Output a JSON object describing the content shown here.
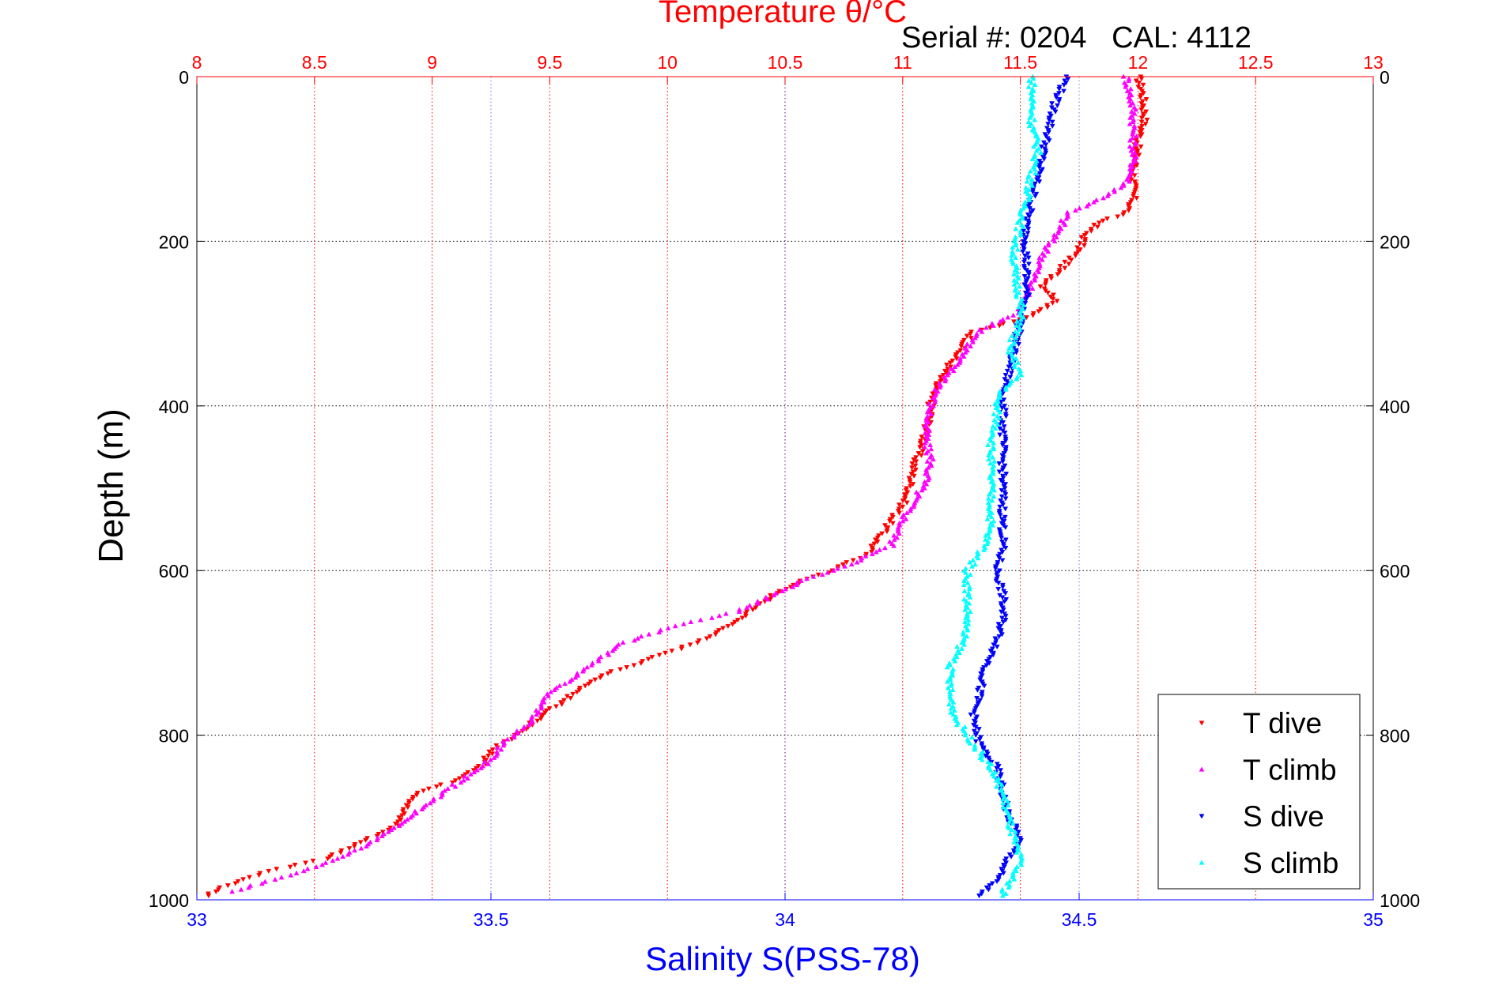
{
  "header": {
    "serial_text": "Serial #: 0204   CAL: 4112"
  },
  "colors": {
    "temperature_axis": "#ff0000",
    "salinity_axis": "#0000ff",
    "depth_axis": "#000000",
    "grid_depth": "#000000",
    "grid_temperature": "#ff0000",
    "grid_salinity": "#0000ff"
  },
  "chart_data": {
    "type": "scatter",
    "title": "Serial #: 0204   CAL: 4112",
    "ylabel": "Depth (m)",
    "ylim": [
      0,
      1000
    ],
    "y_reversed": true,
    "yticks": [
      "0",
      "200",
      "400",
      "600",
      "800",
      "1000"
    ],
    "x_top": {
      "label": "Temperature θ/°C",
      "lim": [
        8,
        13
      ],
      "ticks": [
        "8",
        "8.5",
        "9",
        "9.5",
        "10",
        "10.5",
        "11",
        "11.5",
        "12",
        "12.5",
        "13"
      ]
    },
    "x_bottom": {
      "label": "Salinity S(PSS-78)",
      "lim": [
        33,
        35
      ],
      "ticks": [
        "33",
        "33.5",
        "34",
        "34.5",
        "35"
      ]
    },
    "grid": true,
    "legend_position": "bottom-right",
    "series": [
      {
        "name": "T dive",
        "axis": "top",
        "color": "#ff0000",
        "marker": "triangle-down",
        "points": [
          [
            12.0,
            0
          ],
          [
            12.02,
            20
          ],
          [
            12.03,
            50
          ],
          [
            12.0,
            80
          ],
          [
            11.98,
            120
          ],
          [
            11.98,
            150
          ],
          [
            11.95,
            165
          ],
          [
            11.85,
            175
          ],
          [
            11.78,
            190
          ],
          [
            11.75,
            210
          ],
          [
            11.7,
            225
          ],
          [
            11.65,
            240
          ],
          [
            11.6,
            255
          ],
          [
            11.65,
            270
          ],
          [
            11.62,
            280
          ],
          [
            11.5,
            295
          ],
          [
            11.3,
            310
          ],
          [
            11.25,
            330
          ],
          [
            11.2,
            350
          ],
          [
            11.15,
            370
          ],
          [
            11.12,
            390
          ],
          [
            11.12,
            410
          ],
          [
            11.1,
            430
          ],
          [
            11.08,
            450
          ],
          [
            11.05,
            470
          ],
          [
            11.03,
            500
          ],
          [
            11.0,
            520
          ],
          [
            10.95,
            540
          ],
          [
            10.9,
            560
          ],
          [
            10.85,
            580
          ],
          [
            10.7,
            600
          ],
          [
            10.55,
            615
          ],
          [
            10.45,
            630
          ],
          [
            10.35,
            650
          ],
          [
            10.25,
            670
          ],
          [
            10.1,
            690
          ],
          [
            9.9,
            710
          ],
          [
            9.75,
            725
          ],
          [
            9.65,
            740
          ],
          [
            9.55,
            760
          ],
          [
            9.45,
            780
          ],
          [
            9.35,
            800
          ],
          [
            9.25,
            820
          ],
          [
            9.2,
            840
          ],
          [
            9.1,
            855
          ],
          [
            8.95,
            870
          ],
          [
            8.88,
            890
          ],
          [
            8.85,
            910
          ],
          [
            8.7,
            930
          ],
          [
            8.55,
            950
          ],
          [
            8.3,
            965
          ],
          [
            8.2,
            975
          ],
          [
            8.1,
            985
          ],
          [
            8.05,
            995
          ]
        ]
      },
      {
        "name": "T climb",
        "axis": "top",
        "color": "#ff00ff",
        "marker": "triangle-up",
        "points": [
          [
            11.95,
            0
          ],
          [
            11.98,
            40
          ],
          [
            11.98,
            80
          ],
          [
            11.98,
            110
          ],
          [
            11.95,
            130
          ],
          [
            11.9,
            140
          ],
          [
            11.8,
            155
          ],
          [
            11.7,
            165
          ],
          [
            11.67,
            185
          ],
          [
            11.62,
            205
          ],
          [
            11.58,
            230
          ],
          [
            11.55,
            250
          ],
          [
            11.52,
            270
          ],
          [
            11.48,
            290
          ],
          [
            11.35,
            305
          ],
          [
            11.3,
            320
          ],
          [
            11.25,
            340
          ],
          [
            11.2,
            360
          ],
          [
            11.15,
            380
          ],
          [
            11.12,
            400
          ],
          [
            11.1,
            425
          ],
          [
            11.1,
            445
          ],
          [
            11.12,
            465
          ],
          [
            11.1,
            490
          ],
          [
            11.05,
            515
          ],
          [
            11.0,
            540
          ],
          [
            10.95,
            570
          ],
          [
            10.8,
            590
          ],
          [
            10.6,
            610
          ],
          [
            10.45,
            630
          ],
          [
            10.3,
            650
          ],
          [
            10.0,
            670
          ],
          [
            9.8,
            690
          ],
          [
            9.7,
            710
          ],
          [
            9.6,
            730
          ],
          [
            9.5,
            750
          ],
          [
            9.45,
            770
          ],
          [
            9.4,
            790
          ],
          [
            9.3,
            810
          ],
          [
            9.25,
            830
          ],
          [
            9.15,
            850
          ],
          [
            9.05,
            870
          ],
          [
            8.95,
            890
          ],
          [
            8.85,
            910
          ],
          [
            8.75,
            930
          ],
          [
            8.6,
            950
          ],
          [
            8.45,
            965
          ],
          [
            8.3,
            978
          ],
          [
            8.15,
            990
          ]
        ]
      },
      {
        "name": "S dive",
        "axis": "bottom",
        "color": "#0000ff",
        "marker": "triangle-down",
        "points": [
          [
            34.48,
            0
          ],
          [
            34.46,
            30
          ],
          [
            34.45,
            60
          ],
          [
            34.44,
            90
          ],
          [
            34.43,
            120
          ],
          [
            34.42,
            150
          ],
          [
            34.41,
            180
          ],
          [
            34.41,
            210
          ],
          [
            34.41,
            240
          ],
          [
            34.41,
            270
          ],
          [
            34.4,
            300
          ],
          [
            34.39,
            330
          ],
          [
            34.38,
            360
          ],
          [
            34.37,
            390
          ],
          [
            34.37,
            420
          ],
          [
            34.37,
            450
          ],
          [
            34.37,
            480
          ],
          [
            34.37,
            510
          ],
          [
            34.37,
            540
          ],
          [
            34.37,
            570
          ],
          [
            34.36,
            600
          ],
          [
            34.37,
            630
          ],
          [
            34.37,
            660
          ],
          [
            34.36,
            690
          ],
          [
            34.34,
            720
          ],
          [
            34.33,
            750
          ],
          [
            34.32,
            780
          ],
          [
            34.33,
            810
          ],
          [
            34.36,
            840
          ],
          [
            34.37,
            870
          ],
          [
            34.38,
            900
          ],
          [
            34.4,
            925
          ],
          [
            34.38,
            950
          ],
          [
            34.36,
            975
          ],
          [
            34.33,
            995
          ]
        ]
      },
      {
        "name": "S climb",
        "axis": "bottom",
        "color": "#00ffff",
        "marker": "triangle-up",
        "points": [
          [
            34.42,
            0
          ],
          [
            34.42,
            30
          ],
          [
            34.42,
            60
          ],
          [
            34.43,
            90
          ],
          [
            34.42,
            120
          ],
          [
            34.41,
            150
          ],
          [
            34.4,
            180
          ],
          [
            34.39,
            210
          ],
          [
            34.39,
            240
          ],
          [
            34.4,
            270
          ],
          [
            34.4,
            300
          ],
          [
            34.38,
            330
          ],
          [
            34.4,
            360
          ],
          [
            34.36,
            390
          ],
          [
            34.36,
            420
          ],
          [
            34.35,
            450
          ],
          [
            34.35,
            480
          ],
          [
            34.35,
            510
          ],
          [
            34.35,
            540
          ],
          [
            34.34,
            570
          ],
          [
            34.31,
            600
          ],
          [
            34.31,
            630
          ],
          [
            34.31,
            660
          ],
          [
            34.3,
            690
          ],
          [
            34.28,
            720
          ],
          [
            34.28,
            750
          ],
          [
            34.29,
            780
          ],
          [
            34.32,
            810
          ],
          [
            34.35,
            840
          ],
          [
            34.37,
            870
          ],
          [
            34.38,
            900
          ],
          [
            34.39,
            930
          ],
          [
            34.4,
            955
          ],
          [
            34.38,
            980
          ],
          [
            34.37,
            995
          ]
        ]
      }
    ]
  }
}
